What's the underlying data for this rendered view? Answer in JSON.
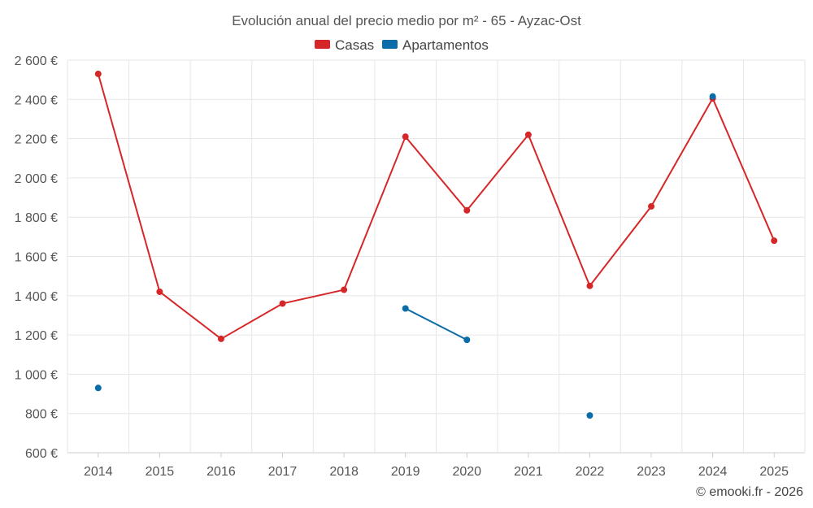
{
  "chart_data": {
    "type": "line",
    "title": "Evolución anual del precio medio por m² - 65 - Ayzac-Ost",
    "x": [
      "2014",
      "2015",
      "2016",
      "2017",
      "2018",
      "2019",
      "2020",
      "2021",
      "2022",
      "2023",
      "2024",
      "2025"
    ],
    "y_ticks": [
      "600 €",
      "800 €",
      "1 000 €",
      "1 200 €",
      "1 400 €",
      "1 600 €",
      "1 800 €",
      "2 000 €",
      "2 200 €",
      "2 400 €",
      "2 600 €"
    ],
    "ylim": [
      600,
      2600
    ],
    "grid": true,
    "legend_position": "top-center",
    "series": [
      {
        "name": "Casas",
        "color": "#d62728",
        "values": [
          2530,
          1420,
          1180,
          1360,
          1430,
          2210,
          1835,
          2220,
          1450,
          1855,
          2405,
          1680
        ]
      },
      {
        "name": "Apartamentos",
        "color": "#0a6ca8",
        "values": [
          930,
          null,
          null,
          null,
          null,
          1335,
          1175,
          null,
          790,
          null,
          2415,
          null
        ]
      }
    ],
    "credit": "© emooki.fr - 2026"
  }
}
